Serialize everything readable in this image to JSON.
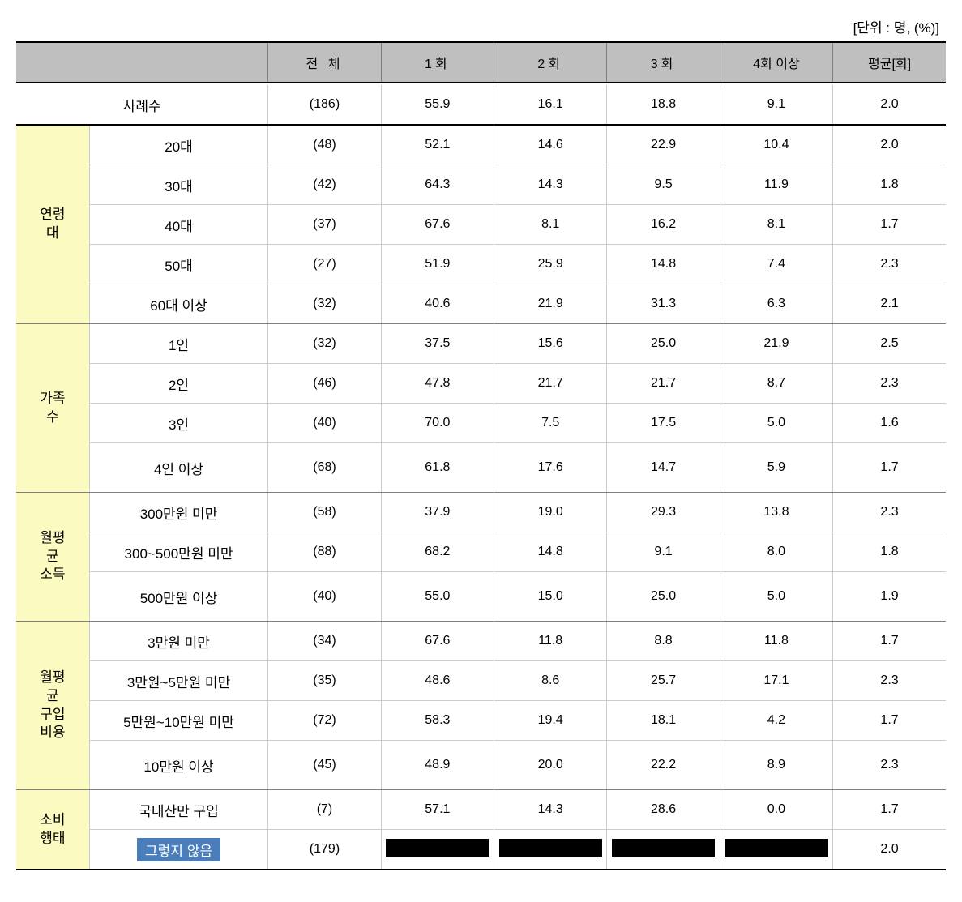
{
  "unit_label": "[단위 : 명, (%)]",
  "columns": {
    "blank": "",
    "total": "전 체",
    "c1": "1회",
    "c2": "2회",
    "c3": "3회",
    "c4": "4회 이상",
    "avg": "평균[회]"
  },
  "summary": {
    "label": "사례수",
    "total": "(186)",
    "c1": "55.9",
    "c2": "16.1",
    "c3": "18.8",
    "c4": "9.1",
    "avg": "2.0"
  },
  "groups": [
    {
      "label": "연령\n대",
      "rows": [
        {
          "label": "20대",
          "total": "(48)",
          "c1": "52.1",
          "c2": "14.6",
          "c3": "22.9",
          "c4": "10.4",
          "avg": "2.0"
        },
        {
          "label": "30대",
          "total": "(42)",
          "c1": "64.3",
          "c2": "14.3",
          "c3": "9.5",
          "c4": "11.9",
          "avg": "1.8"
        },
        {
          "label": "40대",
          "total": "(37)",
          "c1": "67.6",
          "c2": "8.1",
          "c3": "16.2",
          "c4": "8.1",
          "avg": "1.7"
        },
        {
          "label": "50대",
          "total": "(27)",
          "c1": "51.9",
          "c2": "25.9",
          "c3": "14.8",
          "c4": "7.4",
          "avg": "2.3"
        },
        {
          "label": "60대 이상",
          "total": "(32)",
          "c1": "40.6",
          "c2": "21.9",
          "c3": "31.3",
          "c4": "6.3",
          "avg": "2.1"
        }
      ]
    },
    {
      "label": "가족\n수",
      "rows": [
        {
          "label": "1인",
          "total": "(32)",
          "c1": "37.5",
          "c2": "15.6",
          "c3": "25.0",
          "c4": "21.9",
          "avg": "2.5"
        },
        {
          "label": "2인",
          "total": "(46)",
          "c1": "47.8",
          "c2": "21.7",
          "c3": "21.7",
          "c4": "8.7",
          "avg": "2.3"
        },
        {
          "label": "3인",
          "total": "(40)",
          "c1": "70.0",
          "c2": "7.5",
          "c3": "17.5",
          "c4": "5.0",
          "avg": "1.6"
        },
        {
          "label": "4인 이상",
          "total": "(68)",
          "c1": "61.8",
          "c2": "17.6",
          "c3": "14.7",
          "c4": "5.9",
          "avg": "1.7",
          "tall": true
        }
      ]
    },
    {
      "label": "월평\n균\n소득",
      "rows": [
        {
          "label": "300만원 미만",
          "total": "(58)",
          "c1": "37.9",
          "c2": "19.0",
          "c3": "29.3",
          "c4": "13.8",
          "avg": "2.3"
        },
        {
          "label": "300~500만원 미만",
          "total": "(88)",
          "c1": "68.2",
          "c2": "14.8",
          "c3": "9.1",
          "c4": "8.0",
          "avg": "1.8"
        },
        {
          "label": "500만원 이상",
          "total": "(40)",
          "c1": "55.0",
          "c2": "15.0",
          "c3": "25.0",
          "c4": "5.0",
          "avg": "1.9",
          "tall": true
        }
      ]
    },
    {
      "label": "월평\n균\n구입\n비용",
      "rows": [
        {
          "label": "3만원 미만",
          "total": "(34)",
          "c1": "67.6",
          "c2": "11.8",
          "c3": "8.8",
          "c4": "11.8",
          "avg": "1.7"
        },
        {
          "label": "3만원~5만원 미만",
          "total": "(35)",
          "c1": "48.6",
          "c2": "8.6",
          "c3": "25.7",
          "c4": "17.1",
          "avg": "2.3"
        },
        {
          "label": "5만원~10만원 미만",
          "total": "(72)",
          "c1": "58.3",
          "c2": "19.4",
          "c3": "18.1",
          "c4": "4.2",
          "avg": "1.7"
        },
        {
          "label": "10만원 이상",
          "total": "(45)",
          "c1": "48.9",
          "c2": "20.0",
          "c3": "22.2",
          "c4": "8.9",
          "avg": "2.3",
          "tall": true
        }
      ]
    },
    {
      "label": "소비\n행태",
      "rows": [
        {
          "label": "국내산만 구입",
          "total": "(7)",
          "c1": "57.1",
          "c2": "14.3",
          "c3": "28.6",
          "c4": "0.0",
          "avg": "1.7"
        },
        {
          "label": "그렇지 않음",
          "total": "(179)",
          "c1": "",
          "c2": "",
          "c3": "",
          "c4": "",
          "avg": "2.0",
          "highlight": true,
          "redact": true
        }
      ]
    }
  ],
  "styling": {
    "header_bg": "#bfbfbf",
    "group_bg": "#fbfac0",
    "highlight_bg": "#4a7ebb",
    "highlight_fg": "#ffffff",
    "redact_bg": "#000000",
    "border_dark": "#000000",
    "border_med": "#7f7f7f",
    "border_light": "#cccccc",
    "font_family": "Malgun Gothic",
    "base_fontsize": 16
  }
}
